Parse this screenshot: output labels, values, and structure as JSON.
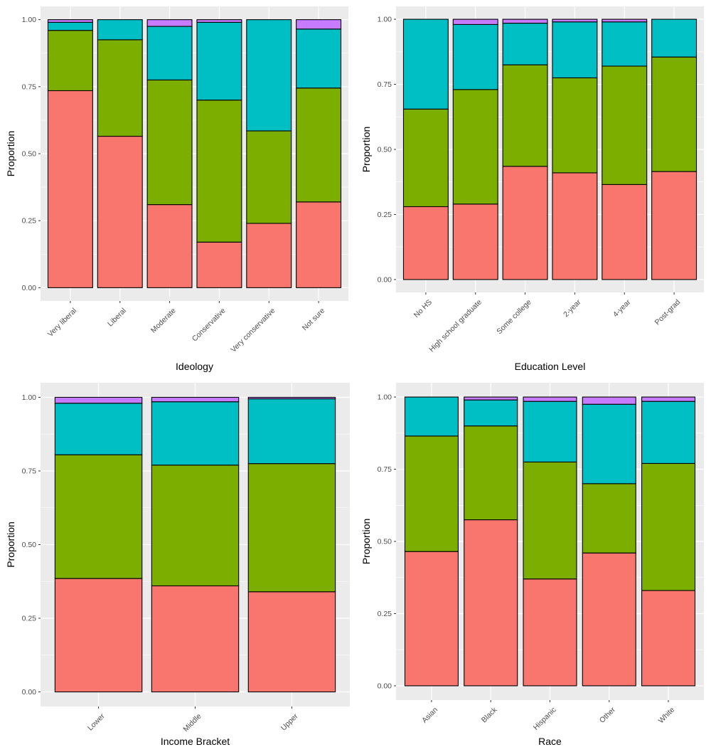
{
  "colors": {
    "panel_background": "#ebebeb",
    "gridline": "#ffffff",
    "segment_bottom": "#f8766d",
    "segment_second": "#7cae00",
    "segment_third": "#00bfc4",
    "segment_top": "#c77cff",
    "outline": "#000000"
  },
  "chart_data": [
    {
      "type": "bar",
      "stacked": true,
      "xlabel": "Ideology",
      "ylabel": "Proportion",
      "ylim": [
        0,
        1
      ],
      "y_ticks": [
        "0.00",
        "0.25",
        "0.50",
        "0.75",
        "1.00"
      ],
      "categories": [
        "Very liberal",
        "Liberal",
        "Moderate",
        "Conservative",
        "Very conservative",
        "Not sure"
      ],
      "series": [
        {
          "values": [
            0.735,
            0.565,
            0.31,
            0.17,
            0.24,
            0.32
          ]
        },
        {
          "values": [
            0.225,
            0.36,
            0.465,
            0.53,
            0.345,
            0.425
          ]
        },
        {
          "values": [
            0.03,
            0.075,
            0.2,
            0.29,
            0.415,
            0.22
          ]
        },
        {
          "values": [
            0.01,
            0.0,
            0.025,
            0.01,
            0.0,
            0.035
          ]
        }
      ],
      "grid": true,
      "legend": "none"
    },
    {
      "type": "bar",
      "stacked": true,
      "xlabel": "Education Level",
      "ylabel": "Proportion",
      "ylim": [
        0,
        1
      ],
      "y_ticks": [
        "0.00",
        "0.25",
        "0.50",
        "0.75",
        "1.00"
      ],
      "categories": [
        "No HS",
        "High school graduate",
        "Some college",
        "2-year",
        "4-year",
        "Post-grad"
      ],
      "series": [
        {
          "values": [
            0.28,
            0.29,
            0.435,
            0.41,
            0.365,
            0.415
          ]
        },
        {
          "values": [
            0.375,
            0.44,
            0.39,
            0.365,
            0.455,
            0.44
          ]
        },
        {
          "values": [
            0.345,
            0.25,
            0.16,
            0.215,
            0.17,
            0.145
          ]
        },
        {
          "values": [
            0.0,
            0.02,
            0.015,
            0.01,
            0.01,
            0.0
          ]
        }
      ],
      "grid": true,
      "legend": "none"
    },
    {
      "type": "bar",
      "stacked": true,
      "xlabel": "Income Bracket",
      "ylabel": "Proportion",
      "ylim": [
        0,
        1
      ],
      "y_ticks": [
        "0.00",
        "0.25",
        "0.50",
        "0.75",
        "1.00"
      ],
      "categories": [
        "Lower",
        "Middle",
        "Upper"
      ],
      "series": [
        {
          "values": [
            0.385,
            0.36,
            0.34
          ]
        },
        {
          "values": [
            0.42,
            0.41,
            0.435
          ]
        },
        {
          "values": [
            0.175,
            0.215,
            0.22
          ]
        },
        {
          "values": [
            0.02,
            0.015,
            0.005
          ]
        }
      ],
      "grid": true,
      "legend": "none"
    },
    {
      "type": "bar",
      "stacked": true,
      "xlabel": "Race",
      "ylabel": "Proportion",
      "ylim": [
        0,
        1
      ],
      "y_ticks": [
        "0.00",
        "0.25",
        "0.50",
        "0.75",
        "1.00"
      ],
      "categories": [
        "Asian",
        "Black",
        "Hispanic",
        "Other",
        "White"
      ],
      "series": [
        {
          "values": [
            0.465,
            0.575,
            0.37,
            0.46,
            0.33
          ]
        },
        {
          "values": [
            0.4,
            0.325,
            0.405,
            0.24,
            0.44
          ]
        },
        {
          "values": [
            0.135,
            0.09,
            0.21,
            0.275,
            0.215
          ]
        },
        {
          "values": [
            0.0,
            0.01,
            0.015,
            0.025,
            0.015
          ]
        }
      ],
      "grid": true,
      "legend": "none"
    }
  ]
}
